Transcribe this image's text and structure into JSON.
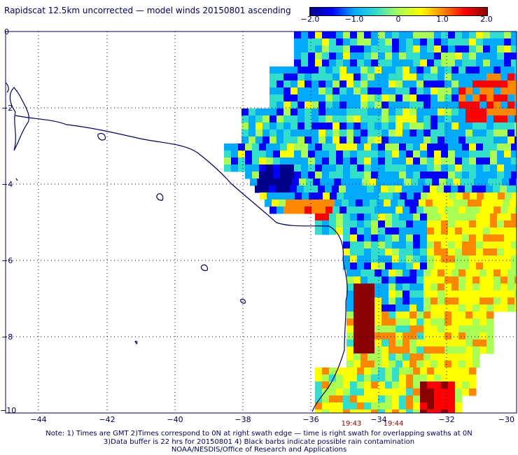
{
  "title": "Rapidscat 12.5km uncorrected — model winds 20150801 ascending",
  "colorbar": {
    "ticks": [
      "−2.0",
      "−1.0",
      "0",
      "1.0",
      "2.0"
    ],
    "colors": [
      "#00008b",
      "#0000ff",
      "#00aaff",
      "#33ddcc",
      "#aaff55",
      "#ffff00",
      "#ff8800",
      "#ff0000",
      "#8b0000"
    ]
  },
  "map": {
    "x_ticks": [
      "−44",
      "−42",
      "−40",
      "−38",
      "−36",
      "−34",
      "−32",
      "−30"
    ],
    "y_ticks": [
      "0",
      "−2",
      "−4",
      "−6",
      "−8",
      "−10"
    ],
    "time_labels": [
      "19:43",
      "19:44"
    ],
    "coastline_color": "#00005a"
  },
  "notes": [
    "Note: 1) Times are GMT 2)Times correspond to 0N at right swath edge — time is right swath for overlapping swaths at 0N",
    "3)Data buffer is 22 hrs for 20150801 4) Black barbs indicate possible rain contamination",
    "NOAA/NESDIS/Office of Research and Applications"
  ]
}
